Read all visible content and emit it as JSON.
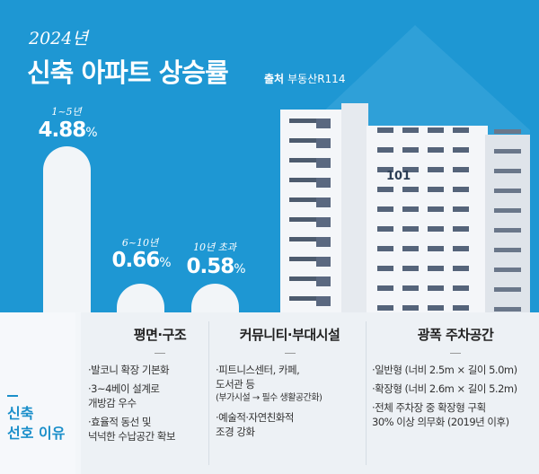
{
  "header": {
    "year": "2024년",
    "title": "신축 아파트 상승률",
    "source_label": "출처",
    "source": "부동산R114"
  },
  "building": {
    "number": "101"
  },
  "colors": {
    "background": "#1e97d3",
    "bar": "#f2f5f8",
    "accent": "#1b8fca"
  },
  "chart_data": {
    "type": "bar",
    "title": "신축 아파트 상승률",
    "categories": [
      "1~5년",
      "6~10년",
      "10년 초과"
    ],
    "values": [
      4.88,
      0.66,
      0.58
    ],
    "labels": [
      "4.88",
      "0.66",
      "0.58"
    ],
    "unit": "%"
  },
  "reasons": {
    "label_line1": "신축",
    "label_line2": "선호 이유",
    "columns": [
      {
        "title": "평면·구조",
        "items": [
          {
            "text": "·발코니 확장 기본화"
          },
          {
            "text": "·3~4베이 설계로\n 개방감 우수"
          },
          {
            "text": "·효율적 동선 및\n 넉넉한 수납공간 확보"
          }
        ]
      },
      {
        "title": "커뮤니티·부대시설",
        "items": [
          {
            "text": "·피트니스센터, 카페,\n 도서관 등",
            "sub": "(부가시설 → 필수 생활공간화)"
          },
          {
            "text": "·예술적·자연친화적\n 조경 강화"
          }
        ]
      },
      {
        "title": "광폭 주차공간",
        "items": [
          {
            "text": "·일반형 (너비 2.5m × 길이 5.0m)"
          },
          {
            "text": "·확장형 (너비 2.6m × 길이 5.2m)"
          },
          {
            "text": "·전체 주차장 중 확장형 구획\n 30% 이상 의무화 (2019년 이후)"
          }
        ]
      }
    ]
  }
}
